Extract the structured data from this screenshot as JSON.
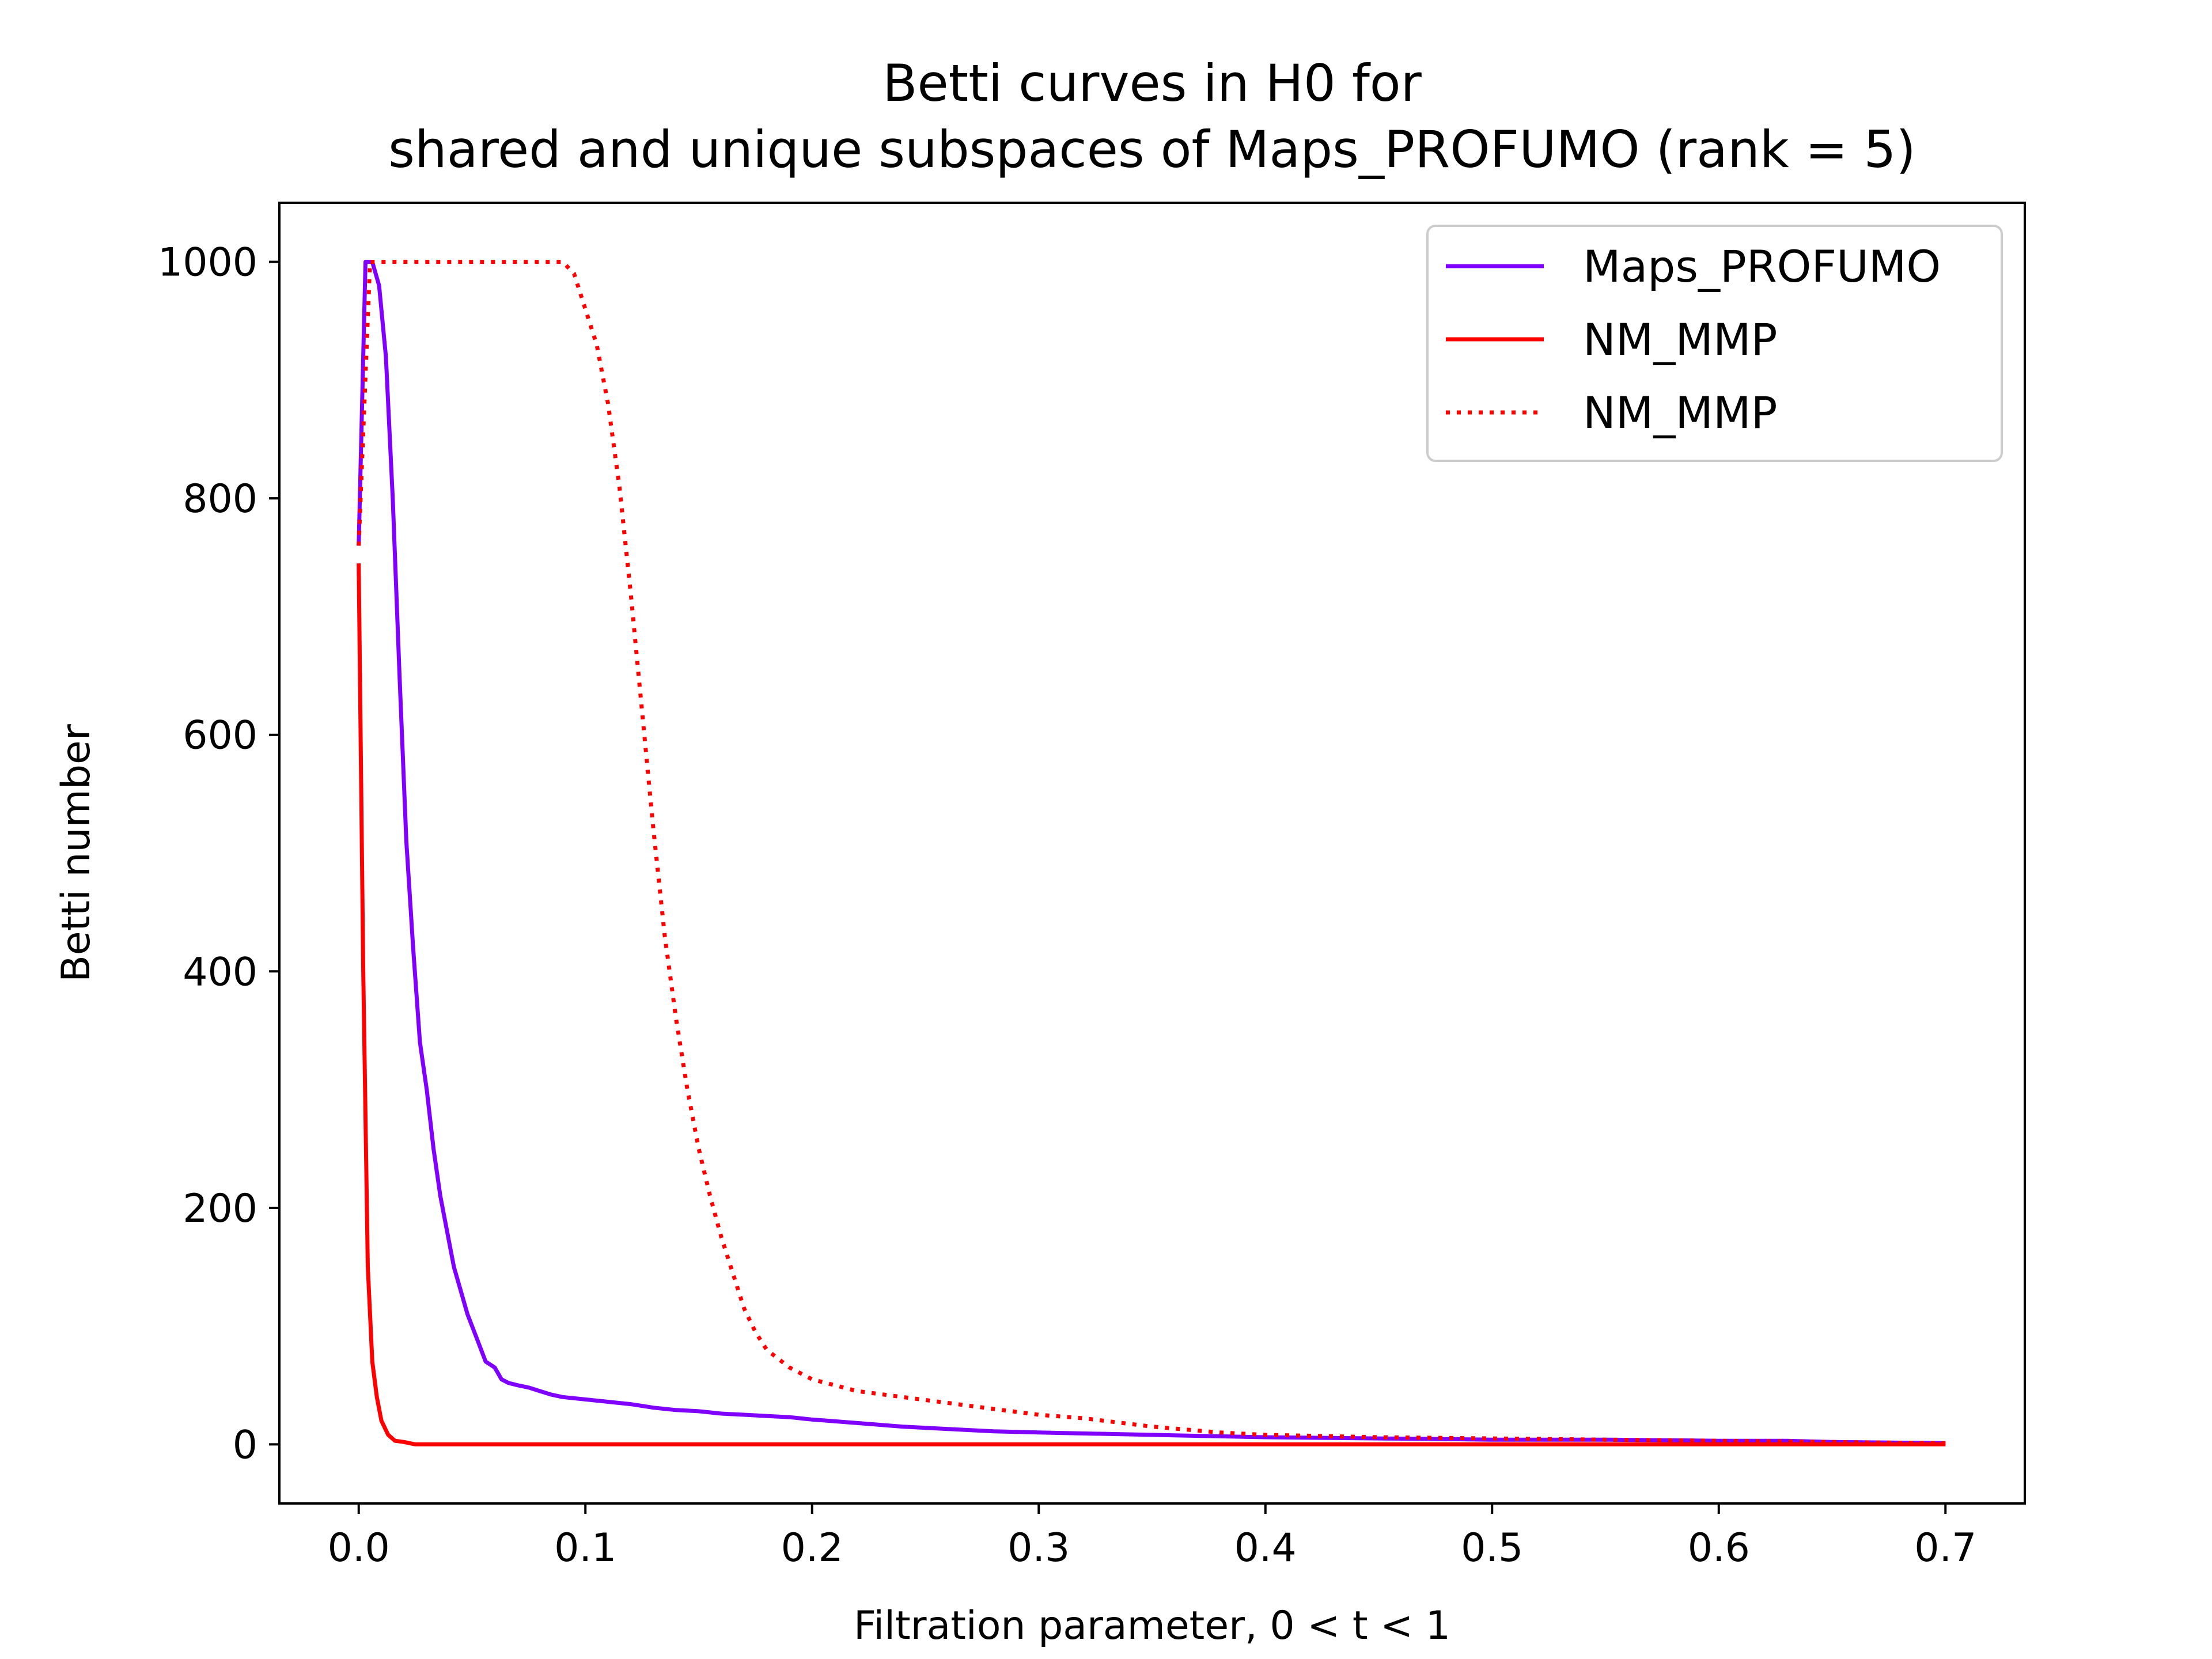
{
  "chart_data": {
    "type": "line",
    "title": [
      "Betti curves in H0 for",
      "shared and unique subspaces of Maps_PROFUMO (rank = 5)"
    ],
    "xlabel": "Filtration parameter, 0 < t < 1",
    "ylabel": "Betti number",
    "xlim": [
      -0.035,
      0.735
    ],
    "ylim": [
      -50,
      1050
    ],
    "xticks": [
      0.0,
      0.1,
      0.2,
      0.3,
      0.4,
      0.5,
      0.6,
      0.7
    ],
    "xtick_labels": [
      "0.0",
      "0.1",
      "0.2",
      "0.3",
      "0.4",
      "0.5",
      "0.6",
      "0.7"
    ],
    "yticks": [
      0,
      200,
      400,
      600,
      800,
      1000
    ],
    "ytick_labels": [
      "0",
      "200",
      "400",
      "600",
      "800",
      "1000"
    ],
    "grid": false,
    "legend_position": "top-right",
    "series": [
      {
        "name": "Maps_PROFUMO",
        "color": "#7f00ff",
        "style": "solid",
        "x": [
          0.0,
          0.003,
          0.006,
          0.009,
          0.012,
          0.015,
          0.018,
          0.021,
          0.024,
          0.027,
          0.03,
          0.033,
          0.036,
          0.039,
          0.042,
          0.045,
          0.048,
          0.052,
          0.056,
          0.06,
          0.063,
          0.066,
          0.07,
          0.075,
          0.08,
          0.085,
          0.09,
          0.1,
          0.11,
          0.12,
          0.13,
          0.14,
          0.15,
          0.16,
          0.17,
          0.18,
          0.19,
          0.2,
          0.22,
          0.24,
          0.26,
          0.28,
          0.3,
          0.35,
          0.4,
          0.45,
          0.5,
          0.55,
          0.6,
          0.63,
          0.65,
          0.7
        ],
        "y": [
          760,
          1000,
          1000,
          980,
          920,
          800,
          650,
          510,
          420,
          340,
          300,
          250,
          210,
          180,
          150,
          130,
          110,
          90,
          70,
          65,
          55,
          52,
          50,
          48,
          45,
          42,
          40,
          38,
          36,
          34,
          31,
          29,
          28,
          26,
          25,
          24,
          23,
          21,
          18,
          15,
          13,
          11,
          10,
          8,
          6,
          5,
          4,
          4,
          3,
          3,
          2,
          1
        ]
      },
      {
        "name": "NM_MMP",
        "color": "#ff0000",
        "style": "solid",
        "x": [
          0.0,
          0.002,
          0.004,
          0.006,
          0.008,
          0.01,
          0.013,
          0.016,
          0.02,
          0.025,
          0.05,
          0.1,
          0.2,
          0.3,
          0.4,
          0.5,
          0.6,
          0.7
        ],
        "y": [
          745,
          400,
          150,
          70,
          40,
          20,
          8,
          3,
          2,
          0,
          0,
          0,
          0,
          0,
          0,
          0,
          0,
          0
        ]
      },
      {
        "name": "NM_MMP",
        "color": "#ff0000",
        "style": "dotted",
        "x": [
          0.0,
          0.005,
          0.05,
          0.09,
          0.095,
          0.1,
          0.105,
          0.11,
          0.115,
          0.12,
          0.125,
          0.13,
          0.135,
          0.14,
          0.145,
          0.15,
          0.155,
          0.16,
          0.165,
          0.17,
          0.175,
          0.18,
          0.19,
          0.2,
          0.21,
          0.22,
          0.24,
          0.26,
          0.28,
          0.3,
          0.32,
          0.35,
          0.38,
          0.4,
          0.45,
          0.5,
          0.55,
          0.6,
          0.65,
          0.7
        ],
        "y": [
          760,
          1000,
          1000,
          1000,
          990,
          960,
          930,
          880,
          810,
          720,
          620,
          520,
          430,
          360,
          300,
          250,
          210,
          175,
          145,
          115,
          95,
          80,
          65,
          55,
          50,
          45,
          40,
          35,
          30,
          25,
          22,
          15,
          10,
          8,
          6,
          5,
          4,
          3,
          2,
          1
        ]
      }
    ]
  }
}
